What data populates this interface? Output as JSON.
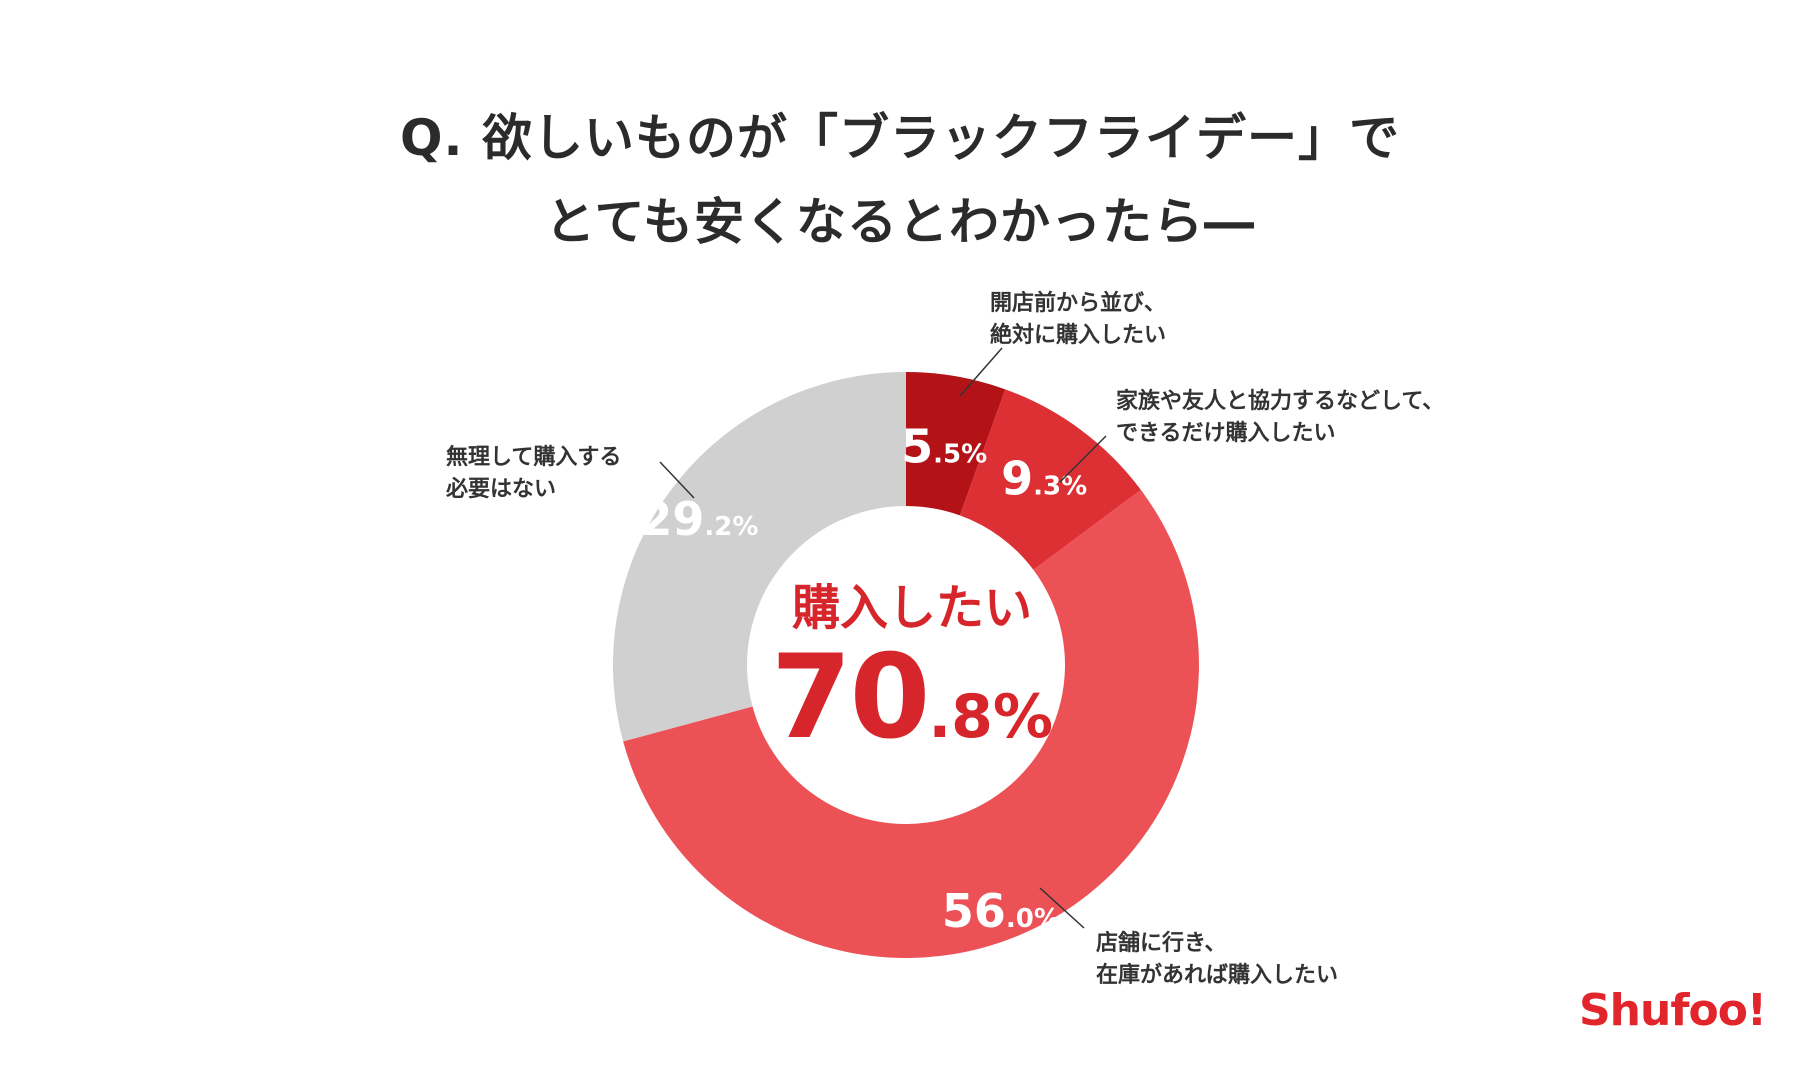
{
  "title": {
    "line1": "Q. 欲しいものが「ブラックフライデー」で",
    "line2": "とても安くなるとわかったら―"
  },
  "chart_data": {
    "type": "pie",
    "variant": "donut",
    "slices": [
      {
        "label": "開店前から並び、絶対に購入したい",
        "value": 5.5,
        "color": "#b31216"
      },
      {
        "label": "家族や友人と協力するなどして、できるだけ購入したい",
        "value": 9.3,
        "color": "#dd3035"
      },
      {
        "label": "店舗に行き、在庫があれば購入したい",
        "value": 56.0,
        "color": "#ec5156"
      },
      {
        "label": "無理して購入する必要はない",
        "value": 29.2,
        "color": "#d0d0d0"
      }
    ],
    "value_labels": [
      {
        "whole": "5",
        "frac": ".5%"
      },
      {
        "whole": "9",
        "frac": ".3%"
      },
      {
        "whole": "56",
        "frac": ".0%"
      },
      {
        "whole": "29",
        "frac": ".2%"
      }
    ],
    "category_labels": [
      {
        "line1": "開店前から並び、",
        "line2": "絶対に購入したい"
      },
      {
        "line1": "家族や友人と協力するなどして、",
        "line2": "できるだけ購入したい"
      },
      {
        "line1": "店舗に行き、",
        "line2": "在庫があれば購入したい"
      },
      {
        "line1": "無理して購入する",
        "line2": "必要はない"
      }
    ],
    "center": {
      "label": "購入したい",
      "whole": "70",
      "frac": ".8%"
    }
  },
  "logo": "Shufoo!"
}
